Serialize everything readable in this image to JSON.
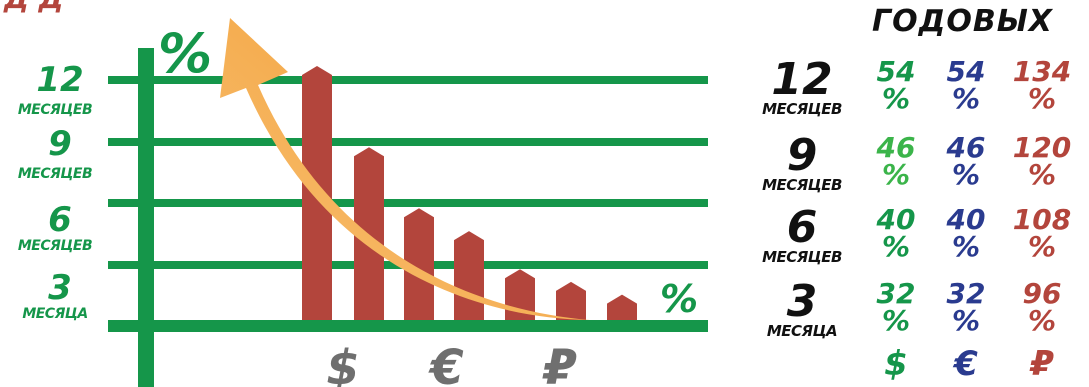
{
  "header": {
    "top_left_fragment": "Д Д",
    "annual_label": "ГОДОВЫХ"
  },
  "colors": {
    "green": "#15964a",
    "light_green": "#3bb44a",
    "blue": "#2a3b8f",
    "red": "#b3453c",
    "arrow": "#f4a949",
    "dark": "#111111"
  },
  "chart_data": {
    "type": "bar",
    "y_tick_labels": [
      {
        "number": "12",
        "unit": "МЕСЯЦЕВ"
      },
      {
        "number": "9",
        "unit": "МЕСЯЦЕВ"
      },
      {
        "number": "6",
        "unit": "МЕСЯЦЕВ"
      },
      {
        "number": "3",
        "unit": "МЕСЯЦА"
      }
    ],
    "y_axis_symbol": "%",
    "x_axis_symbol": "%",
    "x_tick_labels": [
      "$",
      "€",
      "₽"
    ],
    "values": [
      1.0,
      0.68,
      0.44,
      0.35,
      0.2,
      0.15,
      0.1
    ],
    "arrow_direction": "up-left"
  },
  "rate_table": {
    "currencies": [
      "$",
      "€",
      "₽"
    ],
    "rows": [
      {
        "term": "12",
        "unit": "МЕСЯЦЕВ",
        "rates": [
          "54",
          "54",
          "134"
        ]
      },
      {
        "term": "9",
        "unit": "МЕСЯЦЕВ",
        "rates": [
          "46",
          "46",
          "120"
        ]
      },
      {
        "term": "6",
        "unit": "МЕСЯЦЕВ",
        "rates": [
          "40",
          "40",
          "108"
        ]
      },
      {
        "term": "3",
        "unit": "МЕСЯЦА",
        "rates": [
          "32",
          "32",
          "96"
        ]
      }
    ],
    "percent_sign": "%"
  }
}
